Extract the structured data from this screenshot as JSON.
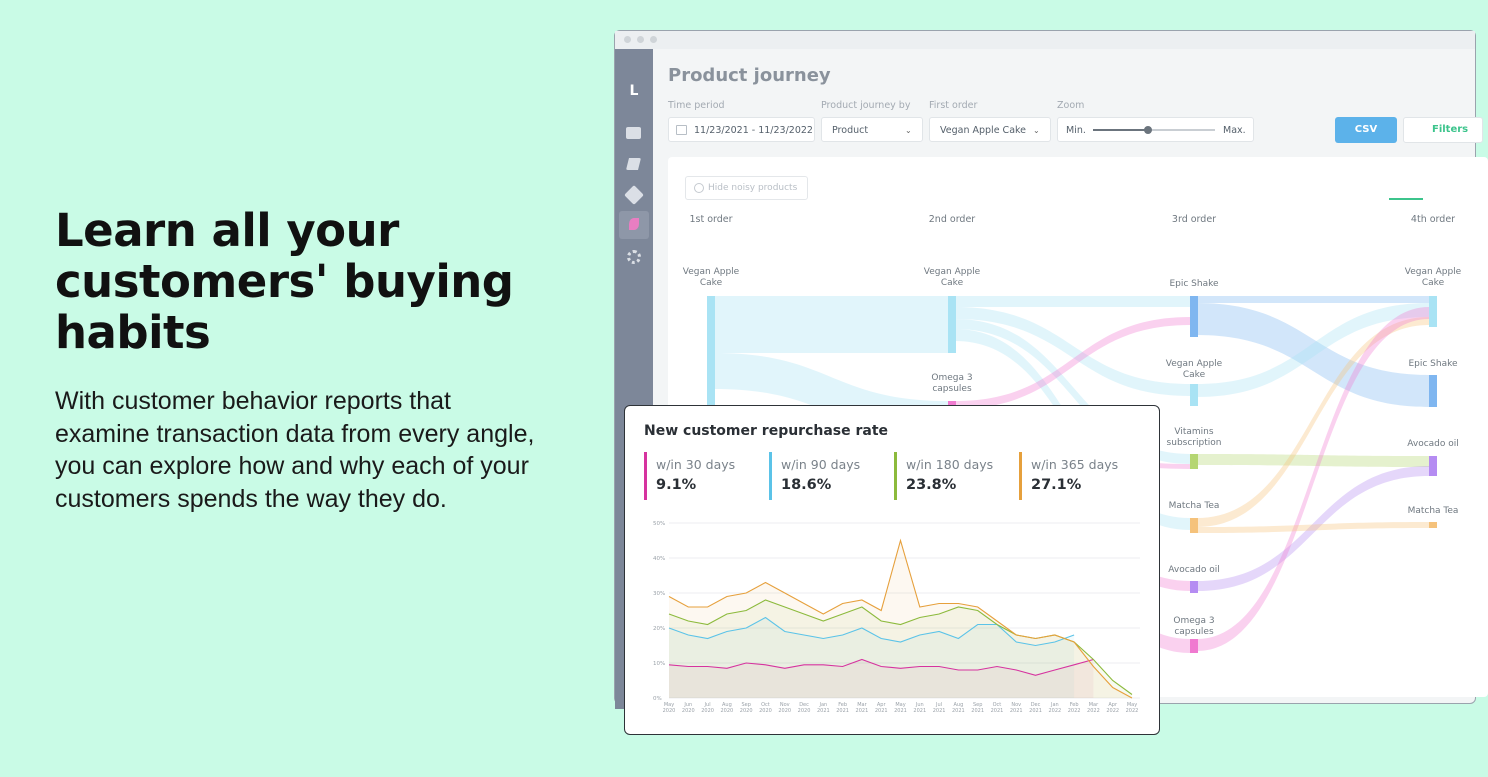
{
  "hero": {
    "title": "Learn all your customers' buying habits",
    "body": "With customer behavior reports that examine transaction data from every angle, you can explore how and why each of your customers spends the way they do."
  },
  "app": {
    "logo": "L",
    "page_title": "Product journey",
    "filters": [
      {
        "label": "Time period",
        "value": "11/23/2021 - 11/23/2022"
      },
      {
        "label": "Product journey by",
        "value": "Product"
      },
      {
        "label": "First order",
        "value": "Vegan Apple Cake"
      },
      {
        "label": "Zoom",
        "min": "Min.",
        "max": "Max."
      }
    ],
    "csv_button": "CSV",
    "filter_button": "Filters",
    "hide_noisy": "Hide noisy products",
    "columns": [
      "1st order",
      "2nd order",
      "3rd order",
      "4th order"
    ],
    "nodes": [
      {
        "label": "Vegan Apple Cake",
        "column": 0
      },
      {
        "label": "Vegan Apple Cake",
        "column": 1
      },
      {
        "label": "Omega 3 capsules",
        "column": 1
      },
      {
        "label": "Epic Shake",
        "column": 2
      },
      {
        "label": "Vegan Apple Cake",
        "column": 2
      },
      {
        "label": "Vitamins subscription",
        "column": 2
      },
      {
        "label": "Matcha Tea",
        "column": 2
      },
      {
        "label": "Avocado oil",
        "column": 2
      },
      {
        "label": "Omega 3 capsules",
        "column": 2
      },
      {
        "label": "Vegan Apple Cake",
        "column": 3
      },
      {
        "label": "Epic Shake",
        "column": 3
      },
      {
        "label": "Avocado oil",
        "column": 3
      },
      {
        "label": "Matcha Tea",
        "column": 3
      }
    ]
  },
  "chart_data": {
    "type": "line",
    "title": "New customer repurchase rate",
    "categories": [
      "May 2020",
      "Jun 2020",
      "Jul 2020",
      "Aug 2020",
      "Sep 2020",
      "Oct 2020",
      "Nov 2020",
      "Dec 2020",
      "Jan 2021",
      "Feb 2021",
      "Mar 2021",
      "Apr 2021",
      "May 2021",
      "Jun 2021",
      "Jul 2021",
      "Aug 2021",
      "Sep 2021",
      "Oct 2021",
      "Nov 2021",
      "Dec 2021",
      "Jan 2022",
      "Feb 2022",
      "Mar 2022",
      "Apr 2022",
      "May 2022"
    ],
    "ylim": [
      0,
      50
    ],
    "yticks": [
      {
        "value": 0,
        "label": "0%"
      },
      {
        "value": 10,
        "label": "10%"
      },
      {
        "value": 20,
        "label": "20%"
      },
      {
        "value": 30,
        "label": "30%"
      },
      {
        "value": 40,
        "label": "40%"
      },
      {
        "value": 50,
        "label": "50%"
      }
    ],
    "grid": true,
    "series": [
      {
        "name": "w/in 30 days",
        "color": "#d6339f",
        "summary": {
          "value": 9.1,
          "label": "9.1%"
        },
        "values": [
          9.5,
          9,
          9,
          8.5,
          10,
          9.5,
          8.5,
          9.5,
          9.5,
          9,
          11,
          9,
          8.5,
          9,
          9,
          8,
          8,
          9,
          8,
          6.5,
          8,
          9.5,
          11,
          null,
          null
        ]
      },
      {
        "name": "w/in 90 days",
        "color": "#5bc3e8",
        "summary": {
          "value": 18.6,
          "label": "18.6%"
        },
        "values": [
          20,
          18,
          17,
          19,
          20,
          23,
          19,
          18,
          17,
          18,
          20,
          17,
          16,
          18,
          19,
          17,
          21,
          21,
          16,
          15,
          16,
          18,
          null,
          null,
          null
        ]
      },
      {
        "name": "w/in 180 days",
        "color": "#8cba3c",
        "summary": {
          "value": 23.8,
          "label": "23.8%"
        },
        "values": [
          24,
          22,
          21,
          24,
          25,
          28,
          26,
          24,
          22,
          24,
          26,
          22,
          21,
          23,
          24,
          26,
          25,
          21,
          18,
          17,
          18,
          16,
          11,
          5,
          1
        ]
      },
      {
        "name": "w/in 365 days",
        "color": "#e6a03c",
        "summary": {
          "value": 27.1,
          "label": "27.1%"
        },
        "values": [
          29,
          26,
          26,
          29,
          30,
          33,
          30,
          27,
          24,
          27,
          28,
          25,
          45,
          26,
          27,
          27,
          26,
          22,
          18,
          17,
          18,
          16,
          9,
          3,
          0
        ]
      }
    ]
  }
}
